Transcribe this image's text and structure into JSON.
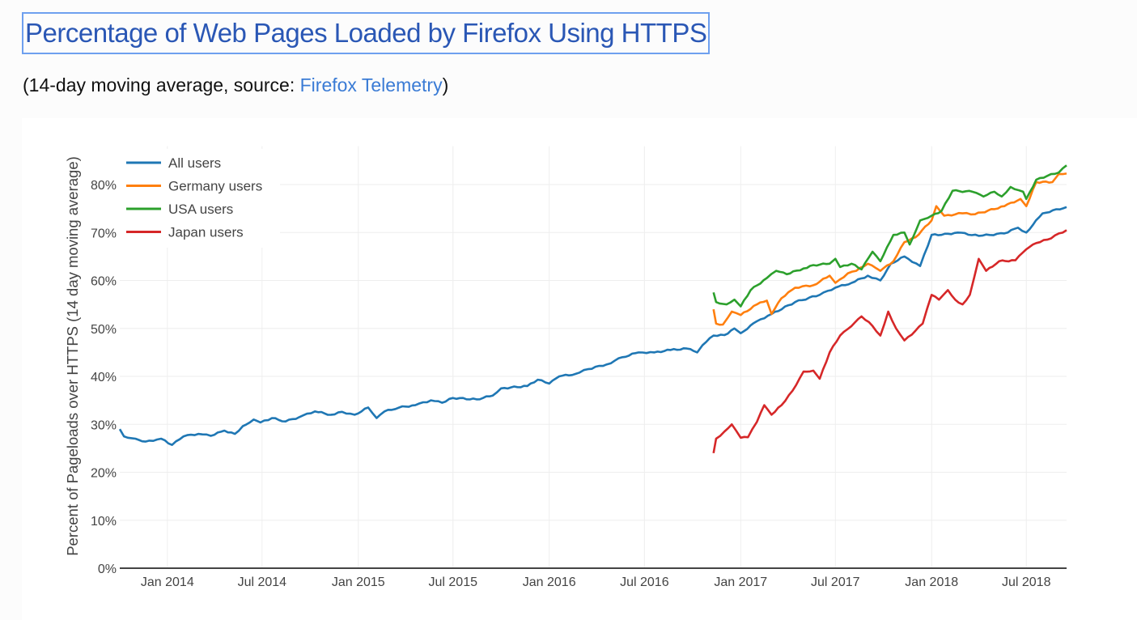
{
  "header": {
    "title": "Percentage of Web Pages Loaded by Firefox Using HTTPS",
    "subtitle_prefix": "(14-day moving average, source: ",
    "subtitle_link": "Firefox Telemetry",
    "subtitle_suffix": ")"
  },
  "chart_data": {
    "type": "line",
    "ylabel": "Percent of Pageloads over HTTPS (14 day moving average)",
    "xlabel": "",
    "xlim": [
      "2013-10-02",
      "2018-09-16"
    ],
    "ylim": [
      0,
      88
    ],
    "y_ticks": [
      "0%",
      "10%",
      "20%",
      "30%",
      "40%",
      "50%",
      "60%",
      "70%",
      "80%"
    ],
    "x_ticks": [
      {
        "date": "2014-01-01",
        "label": "Jan 2014"
      },
      {
        "date": "2014-07-01",
        "label": "Jul 2014"
      },
      {
        "date": "2015-01-01",
        "label": "Jan 2015"
      },
      {
        "date": "2015-07-01",
        "label": "Jul 2015"
      },
      {
        "date": "2016-01-01",
        "label": "Jan 2016"
      },
      {
        "date": "2016-07-01",
        "label": "Jul 2016"
      },
      {
        "date": "2017-01-01",
        "label": "Jan 2017"
      },
      {
        "date": "2017-07-01",
        "label": "Jul 2017"
      },
      {
        "date": "2018-01-01",
        "label": "Jan 2018"
      },
      {
        "date": "2018-07-01",
        "label": "Jul 2018"
      }
    ],
    "grid": true,
    "legend_position": "top-left",
    "series": [
      {
        "name": "All users",
        "color": "#1f77b4",
        "points": [
          [
            "2013-10-02",
            29
          ],
          [
            "2013-10-10",
            27.5
          ],
          [
            "2013-11-01",
            27
          ],
          [
            "2013-11-20",
            26.4
          ],
          [
            "2013-12-20",
            27
          ],
          [
            "2014-01-10",
            25.7
          ],
          [
            "2014-02-01",
            27.5
          ],
          [
            "2014-03-01",
            28
          ],
          [
            "2014-03-25",
            27.6
          ],
          [
            "2014-04-20",
            28.7
          ],
          [
            "2014-05-10",
            28
          ],
          [
            "2014-05-25",
            29.6
          ],
          [
            "2014-06-15",
            31
          ],
          [
            "2014-06-28",
            30.4
          ],
          [
            "2014-07-20",
            31.3
          ],
          [
            "2014-08-15",
            30.6
          ],
          [
            "2014-09-10",
            31.5
          ],
          [
            "2014-10-10",
            32.7
          ],
          [
            "2014-11-10",
            32
          ],
          [
            "2014-12-01",
            32.6
          ],
          [
            "2014-12-25",
            32
          ],
          [
            "2015-01-20",
            33.5
          ],
          [
            "2015-02-05",
            31.3
          ],
          [
            "2015-02-20",
            32.7
          ],
          [
            "2015-03-20",
            33.5
          ],
          [
            "2015-04-20",
            34
          ],
          [
            "2015-05-20",
            35
          ],
          [
            "2015-06-10",
            34.5
          ],
          [
            "2015-07-01",
            35.5
          ],
          [
            "2015-08-15",
            35.2
          ],
          [
            "2015-09-15",
            36
          ],
          [
            "2015-10-01",
            37.5
          ],
          [
            "2015-11-20",
            38
          ],
          [
            "2015-12-10",
            39.3
          ],
          [
            "2016-01-01",
            38.5
          ],
          [
            "2016-01-20",
            40
          ],
          [
            "2016-02-20",
            40.5
          ],
          [
            "2016-03-15",
            41.5
          ],
          [
            "2016-04-20",
            42.5
          ],
          [
            "2016-05-20",
            44
          ],
          [
            "2016-06-20",
            45
          ],
          [
            "2016-07-20",
            45
          ],
          [
            "2016-08-20",
            45.5
          ],
          [
            "2016-09-20",
            45.8
          ],
          [
            "2016-10-10",
            45
          ],
          [
            "2016-10-20",
            46.5
          ],
          [
            "2016-11-10",
            48.5
          ],
          [
            "2016-12-01",
            48.6
          ],
          [
            "2016-12-20",
            50
          ],
          [
            "2017-01-01",
            49
          ],
          [
            "2017-02-01",
            51.5
          ],
          [
            "2017-03-01",
            53
          ],
          [
            "2017-04-15",
            55.5
          ],
          [
            "2017-06-01",
            57
          ],
          [
            "2017-07-01",
            58.5
          ],
          [
            "2017-08-01",
            59.5
          ],
          [
            "2017-09-01",
            61
          ],
          [
            "2017-09-25",
            60
          ],
          [
            "2017-10-15",
            63.5
          ],
          [
            "2017-11-10",
            65
          ],
          [
            "2017-12-10",
            63
          ],
          [
            "2018-01-01",
            69.5
          ],
          [
            "2018-01-20",
            69.5
          ],
          [
            "2018-02-20",
            70
          ],
          [
            "2018-04-01",
            69.3
          ],
          [
            "2018-05-20",
            69.8
          ],
          [
            "2018-06-15",
            71
          ],
          [
            "2018-07-01",
            70
          ],
          [
            "2018-08-01",
            74
          ],
          [
            "2018-09-16",
            75.3
          ]
        ]
      },
      {
        "name": "Germany users",
        "color": "#ff7f0e",
        "points": [
          [
            "2016-11-10",
            54
          ],
          [
            "2016-11-15",
            51
          ],
          [
            "2016-11-28",
            50.8
          ],
          [
            "2016-12-15",
            53.5
          ],
          [
            "2017-01-01",
            52.8
          ],
          [
            "2017-02-01",
            55
          ],
          [
            "2017-02-20",
            55.8
          ],
          [
            "2017-03-01",
            53
          ],
          [
            "2017-03-20",
            56.3
          ],
          [
            "2017-04-15",
            58.5
          ],
          [
            "2017-05-20",
            59
          ],
          [
            "2017-06-20",
            61
          ],
          [
            "2017-07-01",
            59.5
          ],
          [
            "2017-07-25",
            61.5
          ],
          [
            "2017-08-10",
            62
          ],
          [
            "2017-09-01",
            63.5
          ],
          [
            "2017-09-25",
            62
          ],
          [
            "2017-10-20",
            64
          ],
          [
            "2017-11-10",
            68
          ],
          [
            "2017-12-01",
            69
          ],
          [
            "2018-01-01",
            72.5
          ],
          [
            "2018-01-10",
            75.5
          ],
          [
            "2018-01-25",
            73.5
          ],
          [
            "2018-03-01",
            74
          ],
          [
            "2018-03-25",
            73.8
          ],
          [
            "2018-05-20",
            75.5
          ],
          [
            "2018-06-20",
            77
          ],
          [
            "2018-07-01",
            75.5
          ],
          [
            "2018-07-20",
            80.5
          ],
          [
            "2018-08-20",
            80.5
          ],
          [
            "2018-09-01",
            82.2
          ],
          [
            "2018-09-16",
            82.3
          ]
        ]
      },
      {
        "name": "USA users",
        "color": "#2ca02c",
        "points": [
          [
            "2016-11-10",
            57.5
          ],
          [
            "2016-11-15",
            55.5
          ],
          [
            "2016-12-05",
            55
          ],
          [
            "2016-12-20",
            56
          ],
          [
            "2017-01-01",
            54.6
          ],
          [
            "2017-01-20",
            58
          ],
          [
            "2017-02-20",
            60.5
          ],
          [
            "2017-03-10",
            62
          ],
          [
            "2017-03-30",
            61.3
          ],
          [
            "2017-05-01",
            62.5
          ],
          [
            "2017-05-20",
            63.2
          ],
          [
            "2017-06-20",
            63.5
          ],
          [
            "2017-07-01",
            64.5
          ],
          [
            "2017-07-10",
            62.8
          ],
          [
            "2017-08-01",
            63.5
          ],
          [
            "2017-08-20",
            62.3
          ],
          [
            "2017-09-10",
            66
          ],
          [
            "2017-09-25",
            64
          ],
          [
            "2017-10-20",
            69.5
          ],
          [
            "2017-11-10",
            70
          ],
          [
            "2017-11-20",
            67.5
          ],
          [
            "2017-12-10",
            72.5
          ],
          [
            "2018-01-01",
            73.5
          ],
          [
            "2018-01-20",
            74.5
          ],
          [
            "2018-02-10",
            78.7
          ],
          [
            "2018-03-20",
            78.5
          ],
          [
            "2018-04-10",
            77.5
          ],
          [
            "2018-05-01",
            78.5
          ],
          [
            "2018-05-15",
            77.5
          ],
          [
            "2018-06-01",
            79.5
          ],
          [
            "2018-06-25",
            78.5
          ],
          [
            "2018-07-01",
            77
          ],
          [
            "2018-07-20",
            81
          ],
          [
            "2018-08-10",
            81.8
          ],
          [
            "2018-09-01",
            82.5
          ],
          [
            "2018-09-16",
            84
          ]
        ]
      },
      {
        "name": "Japan users",
        "color": "#d62728",
        "points": [
          [
            "2016-11-10",
            24
          ],
          [
            "2016-11-15",
            27
          ],
          [
            "2016-12-01",
            28.5
          ],
          [
            "2016-12-15",
            30
          ],
          [
            "2017-01-01",
            27.2
          ],
          [
            "2017-01-15",
            27.3
          ],
          [
            "2017-02-01",
            30.5
          ],
          [
            "2017-02-15",
            34
          ],
          [
            "2017-03-01",
            32
          ],
          [
            "2017-03-20",
            34
          ],
          [
            "2017-04-10",
            37
          ],
          [
            "2017-05-01",
            41
          ],
          [
            "2017-05-20",
            41.2
          ],
          [
            "2017-06-01",
            39.5
          ],
          [
            "2017-06-20",
            45
          ],
          [
            "2017-07-10",
            48.5
          ],
          [
            "2017-08-01",
            50.5
          ],
          [
            "2017-08-20",
            52.5
          ],
          [
            "2017-09-10",
            50.5
          ],
          [
            "2017-09-25",
            48.5
          ],
          [
            "2017-10-10",
            53.5
          ],
          [
            "2017-10-25",
            50
          ],
          [
            "2017-11-10",
            47.5
          ],
          [
            "2017-12-01",
            49.5
          ],
          [
            "2017-12-15",
            51
          ],
          [
            "2018-01-01",
            57
          ],
          [
            "2018-01-15",
            56
          ],
          [
            "2018-02-01",
            58
          ],
          [
            "2018-02-15",
            56
          ],
          [
            "2018-03-01",
            55
          ],
          [
            "2018-03-15",
            57
          ],
          [
            "2018-04-01",
            64.5
          ],
          [
            "2018-04-15",
            62
          ],
          [
            "2018-05-10",
            64
          ],
          [
            "2018-06-10",
            64.2
          ],
          [
            "2018-07-01",
            66.5
          ],
          [
            "2018-07-20",
            67.8
          ],
          [
            "2018-08-10",
            68.5
          ],
          [
            "2018-09-16",
            70.5
          ]
        ]
      }
    ]
  }
}
